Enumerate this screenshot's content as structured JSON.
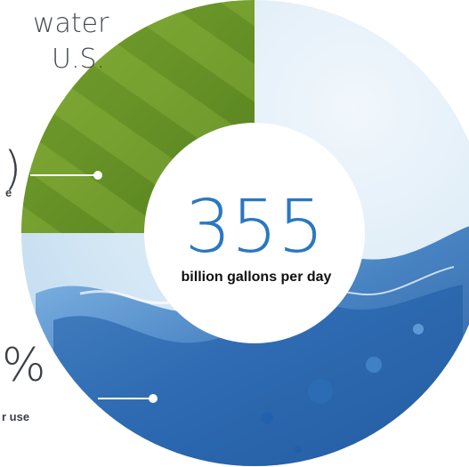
{
  "title": {
    "line1": "water",
    "line2": "U.S."
  },
  "chart_data": {
    "type": "pie",
    "style": "donut",
    "center_value": "355",
    "center_label": "billion gallons per day",
    "slices": [
      {
        "label": "...e",
        "texture": "grass",
        "color": "#6f9a2c",
        "value_fraction": 0.25
      },
      {
        "label": "...r use",
        "texture": "water",
        "color": "#2c6fb8",
        "value_fraction": 0.75
      }
    ],
    "callouts": [
      {
        "number": ")",
        "sub": "e"
      },
      {
        "number": "%",
        "sub": "r use"
      }
    ]
  },
  "colors": {
    "grass_dark": "#4f7a1c",
    "grass_light": "#8db33a",
    "water_sky": "#dcebf6",
    "water_blue": "#1f5fae",
    "text": "#3b4045",
    "callout_line": "#ffffff"
  }
}
